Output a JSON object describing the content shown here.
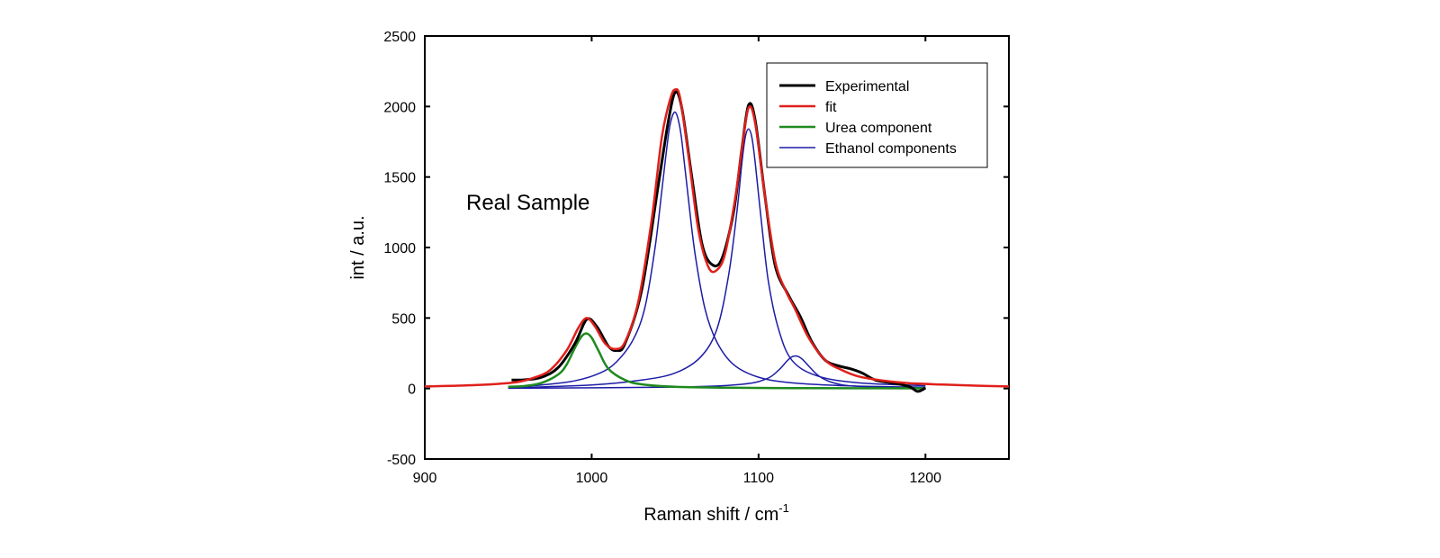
{
  "chart_data": {
    "type": "line",
    "xlabel": "Raman shift / cm",
    "xlabel_superscript": "-1",
    "ylabel": "int / a.u.",
    "xlim": [
      900,
      1250
    ],
    "ylim": [
      -500,
      2500
    ],
    "xticks": [
      900,
      1000,
      1100,
      1200
    ],
    "yticks": [
      -500,
      0,
      500,
      1000,
      1500,
      2000,
      2500
    ],
    "annotation": "Real Sample",
    "legend_position": "top-right",
    "colors": {
      "experimental": "#000000",
      "fit": "#e0201b",
      "urea": "#1e8a1e",
      "ethanol": "#1c1ca6"
    },
    "series": [
      {
        "name": "Experimental",
        "color": "#000000",
        "x": [
          952,
          960,
          970,
          980,
          990,
          997,
          1003,
          1010,
          1015,
          1020,
          1030,
          1040,
          1046,
          1050,
          1054,
          1060,
          1066,
          1072,
          1078,
          1085,
          1090,
          1094,
          1098,
          1104,
          1110,
          1118,
          1125,
          1132,
          1140,
          1148,
          1155,
          1162,
          1170,
          1180,
          1190,
          1195,
          1198,
          1200
        ],
        "y": [
          60,
          62,
          80,
          150,
          320,
          490,
          440,
          300,
          270,
          320,
          700,
          1450,
          1900,
          2100,
          1990,
          1500,
          1030,
          880,
          920,
          1250,
          1700,
          2010,
          1900,
          1350,
          870,
          660,
          510,
          330,
          200,
          160,
          140,
          110,
          60,
          40,
          15,
          -20,
          -10,
          5
        ]
      },
      {
        "name": "fit",
        "color": "#e0201b",
        "x": [
          900,
          920,
          940,
          955,
          965,
          975,
          985,
          992,
          997,
          1002,
          1008,
          1014,
          1020,
          1028,
          1036,
          1042,
          1047,
          1050,
          1053,
          1058,
          1064,
          1070,
          1075,
          1080,
          1086,
          1090,
          1094,
          1098,
          1104,
          1110,
          1116,
          1122,
          1130,
          1140,
          1150,
          1160,
          1175,
          1190,
          1210,
          1230,
          1250
        ],
        "y": [
          15,
          20,
          30,
          45,
          75,
          130,
          270,
          430,
          500,
          440,
          320,
          280,
          330,
          620,
          1200,
          1780,
          2050,
          2120,
          2060,
          1650,
          1120,
          860,
          840,
          960,
          1350,
          1700,
          1990,
          1880,
          1350,
          900,
          700,
          560,
          360,
          200,
          130,
          85,
          55,
          38,
          28,
          20,
          15
        ]
      },
      {
        "name": "Urea component",
        "color": "#1e8a1e",
        "x": [
          950,
          960,
          970,
          980,
          985,
          990,
          994,
          997,
          1000,
          1004,
          1010,
          1020,
          1030,
          1050,
          1080,
          1120,
          1160,
          1200
        ],
        "y": [
          12,
          18,
          40,
          100,
          170,
          290,
          370,
          390,
          360,
          270,
          140,
          60,
          30,
          12,
          6,
          3,
          2,
          1
        ]
      },
      {
        "name": "Ethanol components",
        "color": "#1c1ca6",
        "x": [
          950,
          970,
          990,
          1005,
          1015,
          1025,
          1032,
          1038,
          1042,
          1046,
          1048,
          1050,
          1052,
          1054,
          1058,
          1062,
          1068,
          1075,
          1085,
          1100,
          1120,
          1150,
          1180,
          1200
        ],
        "y": [
          10,
          25,
          55,
          110,
          190,
          350,
          580,
          1000,
          1400,
          1800,
          1920,
          1960,
          1900,
          1760,
          1340,
          950,
          560,
          330,
          170,
          80,
          40,
          20,
          12,
          10
        ]
      },
      {
        "name": "",
        "color": "#1c1ca6",
        "x": [
          950,
          1000,
          1030,
          1050,
          1065,
          1075,
          1082,
          1087,
          1090,
          1092,
          1094,
          1096,
          1098,
          1102,
          1106,
          1112,
          1120,
          1135,
          1160,
          1200
        ],
        "y": [
          5,
          25,
          60,
          110,
          220,
          420,
          800,
          1250,
          1600,
          1780,
          1840,
          1780,
          1600,
          1150,
          750,
          420,
          200,
          90,
          40,
          20
        ]
      },
      {
        "name": "",
        "color": "#1c1ca6",
        "x": [
          950,
          1050,
          1090,
          1105,
          1112,
          1117,
          1120,
          1123,
          1126,
          1130,
          1136,
          1145,
          1160,
          1200
        ],
        "y": [
          2,
          10,
          30,
          70,
          130,
          195,
          225,
          230,
          210,
          160,
          90,
          40,
          15,
          5
        ]
      }
    ]
  }
}
